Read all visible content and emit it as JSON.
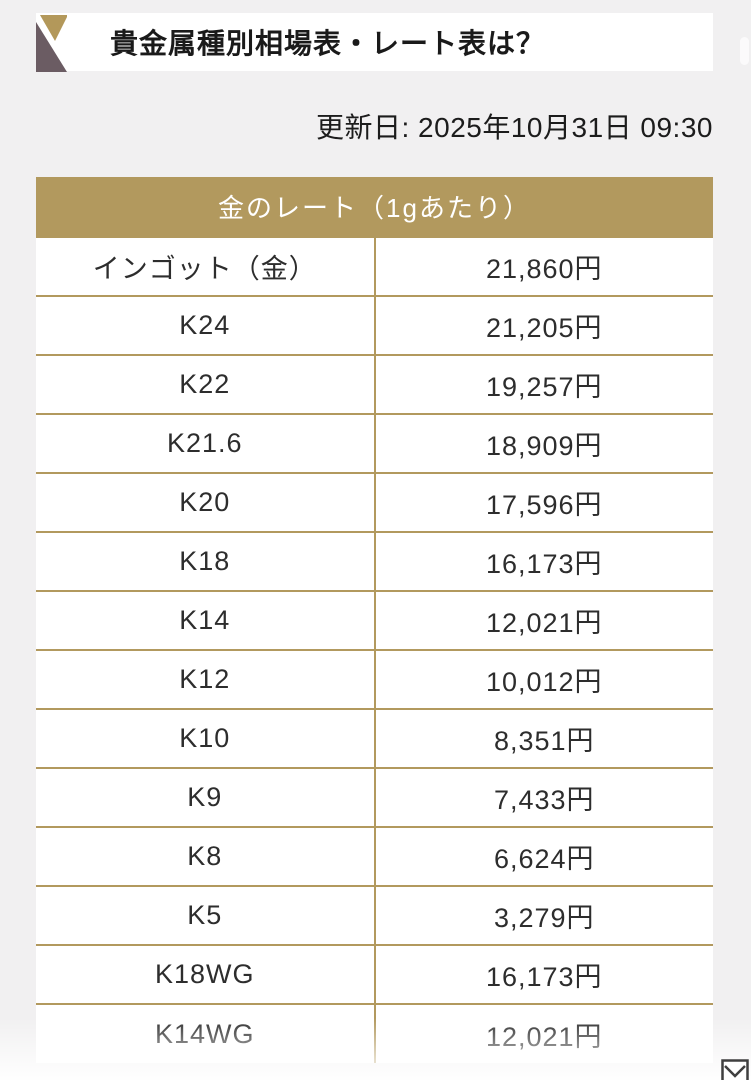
{
  "page": {
    "title": "貴金属種別相場表・レート表は？",
    "updated_label": "更新日: 2025年10月31日 09:30"
  },
  "table": {
    "header": "金のレート（1gあたり）",
    "columns": [
      "metal_type",
      "price_per_gram"
    ],
    "rows": [
      {
        "label": "インゴット（金）",
        "price": "21,860円"
      },
      {
        "label": "K24",
        "price": "21,205円"
      },
      {
        "label": "K22",
        "price": "19,257円"
      },
      {
        "label": "K21.6",
        "price": "18,909円"
      },
      {
        "label": "K20",
        "price": "17,596円"
      },
      {
        "label": "K18",
        "price": "16,173円"
      },
      {
        "label": "K14",
        "price": "12,021円"
      },
      {
        "label": "K12",
        "price": "10,012円"
      },
      {
        "label": "K10",
        "price": "8,351円"
      },
      {
        "label": "K9",
        "price": "7,433円"
      },
      {
        "label": "K8",
        "price": "6,624円"
      },
      {
        "label": "K5",
        "price": "3,279円"
      },
      {
        "label": "K18WG",
        "price": "16,173円"
      },
      {
        "label": "K14WG",
        "price": "12,021円"
      }
    ]
  },
  "icons": {
    "title_accent": "dual-triangle-accent",
    "mail": "envelope-icon"
  },
  "colors": {
    "gold": "#b2995e",
    "accent_gold_triangle": "#b3985a",
    "accent_dark_triangle": "#6b5c63",
    "page_background": "#f1f0f1",
    "header_text": "#ffffff",
    "body_text": "#2d2d2d"
  }
}
